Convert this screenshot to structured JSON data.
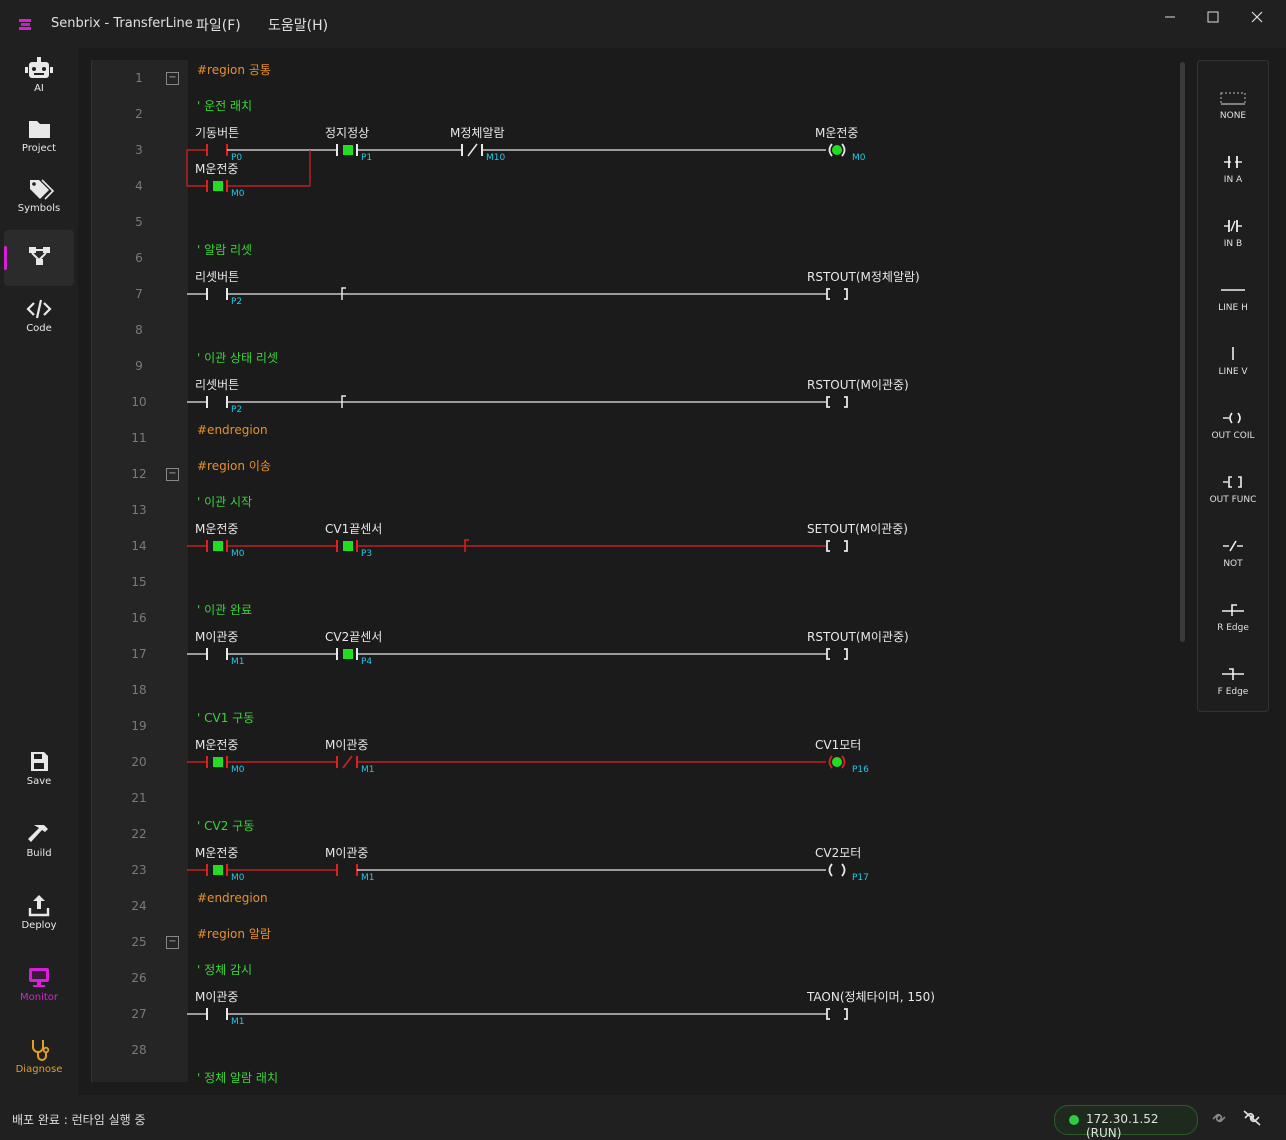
{
  "app": {
    "title": "Senbrix - TransferLine"
  },
  "menu": [
    {
      "label": "파일(F)"
    },
    {
      "label": "도움말(H)"
    }
  ],
  "sidebar": {
    "top": [
      {
        "label": "AI",
        "icon": "robot-icon"
      },
      {
        "label": "Project",
        "icon": "folder-icon"
      },
      {
        "label": "Symbols",
        "icon": "tags-icon"
      },
      {
        "label": "",
        "icon": "ladder-diagram-icon",
        "active": true
      },
      {
        "label": "Code",
        "icon": "code-icon"
      }
    ],
    "bottom": [
      {
        "label": "Save",
        "icon": "save-icon"
      },
      {
        "label": "Build",
        "icon": "hammer-icon"
      },
      {
        "label": "Deploy",
        "icon": "upload-icon"
      },
      {
        "label": "Monitor",
        "icon": "monitor-icon",
        "color": "#d91ed9"
      },
      {
        "label": "Diagnose",
        "icon": "stethoscope-icon",
        "color": "#e0a020"
      }
    ]
  },
  "toolbox": [
    {
      "label": "NONE",
      "icon": "none-icon"
    },
    {
      "label": "IN A",
      "icon": "contact-no-icon"
    },
    {
      "label": "IN B",
      "icon": "contact-nc-icon"
    },
    {
      "label": "LINE H",
      "icon": "line-h-icon"
    },
    {
      "label": "LINE V",
      "icon": "line-v-icon"
    },
    {
      "label": "OUT COIL",
      "icon": "coil-icon"
    },
    {
      "label": "OUT FUNC",
      "icon": "func-icon"
    },
    {
      "label": "NOT",
      "icon": "not-icon"
    },
    {
      "label": "R Edge",
      "icon": "rising-edge-icon"
    },
    {
      "label": "F Edge",
      "icon": "falling-edge-icon"
    }
  ],
  "lines": [
    "1",
    "2",
    "3",
    "4",
    "5",
    "6",
    "7",
    "8",
    "9",
    "10",
    "11",
    "12",
    "13",
    "14",
    "15",
    "16",
    "17",
    "18",
    "19",
    "20",
    "21",
    "22",
    "23",
    "24",
    "25",
    "26",
    "27",
    "28"
  ],
  "colors": {
    "energized": "#e02020",
    "idle": "#e8e8e8",
    "address": "#20c8e8",
    "region": "#e8902a",
    "comment": "#3ad43a",
    "on": "#22dd22"
  },
  "ladder": [
    {
      "row": 1,
      "kind": "region",
      "text": "#region 공통",
      "fold": true
    },
    {
      "row": 2,
      "kind": "comment",
      "text": "' 운전 래치"
    },
    {
      "row": 3,
      "kind": "rung",
      "powered": true,
      "elements": [
        {
          "type": "no",
          "label": "기동버튼",
          "addr": "P0",
          "on": false
        },
        {
          "type": "no",
          "label": "정지정상",
          "addr": "P1",
          "on": true
        },
        {
          "type": "nc",
          "label": "M정체알람",
          "addr": "M10",
          "on": false
        },
        {
          "type": "coil",
          "label": "M운전중",
          "addr": "M0",
          "on": true
        }
      ]
    },
    {
      "row": 4,
      "kind": "branch",
      "powered": true,
      "elements": [
        {
          "type": "no",
          "label": "M운전중",
          "addr": "M0",
          "on": true
        }
      ]
    },
    {
      "row": 6,
      "kind": "comment",
      "text": "' 알람 리셋"
    },
    {
      "row": 7,
      "kind": "rung",
      "powered": false,
      "elements": [
        {
          "type": "no",
          "label": "리셋버튼",
          "addr": "P2",
          "on": false
        },
        {
          "type": "edge"
        },
        {
          "type": "func",
          "label": "RSTOUT(M정체알람)"
        }
      ]
    },
    {
      "row": 9,
      "kind": "comment",
      "text": "' 이관 상태 리셋"
    },
    {
      "row": 10,
      "kind": "rung",
      "powered": false,
      "elements": [
        {
          "type": "no",
          "label": "리셋버튼",
          "addr": "P2",
          "on": false
        },
        {
          "type": "edge"
        },
        {
          "type": "func",
          "label": "RSTOUT(M이관중)"
        }
      ]
    },
    {
      "row": 11,
      "kind": "region",
      "text": "#endregion"
    },
    {
      "row": 12,
      "kind": "region",
      "text": "#region 이송",
      "fold": true
    },
    {
      "row": 13,
      "kind": "comment",
      "text": "' 이관 시작"
    },
    {
      "row": 14,
      "kind": "rung",
      "powered": true,
      "elements": [
        {
          "type": "no",
          "label": "M운전중",
          "addr": "M0",
          "on": true
        },
        {
          "type": "no",
          "label": "CV1끝센서",
          "addr": "P3",
          "on": true
        },
        {
          "type": "edge"
        },
        {
          "type": "func",
          "label": "SETOUT(M이관중)"
        }
      ]
    },
    {
      "row": 16,
      "kind": "comment",
      "text": "' 이관 완료"
    },
    {
      "row": 17,
      "kind": "rung",
      "powered": false,
      "elements": [
        {
          "type": "no",
          "label": "M이관중",
          "addr": "M1",
          "on": false
        },
        {
          "type": "no",
          "label": "CV2끝센서",
          "addr": "P4",
          "on": true
        },
        {
          "type": "func",
          "label": "RSTOUT(M이관중)"
        }
      ]
    },
    {
      "row": 19,
      "kind": "comment",
      "text": "' CV1 구동"
    },
    {
      "row": 20,
      "kind": "rung",
      "powered": true,
      "elements": [
        {
          "type": "no",
          "label": "M운전중",
          "addr": "M0",
          "on": true
        },
        {
          "type": "nc",
          "label": "M이관중",
          "addr": "M1",
          "on": false
        },
        {
          "type": "coil",
          "label": "CV1모터",
          "addr": "P16",
          "on": true
        }
      ]
    },
    {
      "row": 22,
      "kind": "comment",
      "text": "' CV2 구동"
    },
    {
      "row": 23,
      "kind": "rung",
      "powered": true,
      "elements": [
        {
          "type": "no",
          "label": "M운전중",
          "addr": "M0",
          "on": true
        },
        {
          "type": "no",
          "label": "M이관중",
          "addr": "M1",
          "on": false
        },
        {
          "type": "coil",
          "label": "CV2모터",
          "addr": "P17",
          "on": false
        }
      ]
    },
    {
      "row": 24,
      "kind": "region",
      "text": "#endregion"
    },
    {
      "row": 25,
      "kind": "region",
      "text": "#region 알람",
      "fold": true
    },
    {
      "row": 26,
      "kind": "comment",
      "text": "' 정체 감시"
    },
    {
      "row": 27,
      "kind": "rung",
      "powered": false,
      "elements": [
        {
          "type": "no",
          "label": "M이관중",
          "addr": "M1",
          "on": false
        },
        {
          "type": "func",
          "label": "TAON(정체타이머, 150)"
        }
      ]
    },
    {
      "row": 29,
      "kind": "comment",
      "text": "' 정체 알람 래치"
    }
  ],
  "status": {
    "message": "배포 완료 : 런타임 실행 중",
    "connection": "172.30.1.52 (RUN)"
  }
}
